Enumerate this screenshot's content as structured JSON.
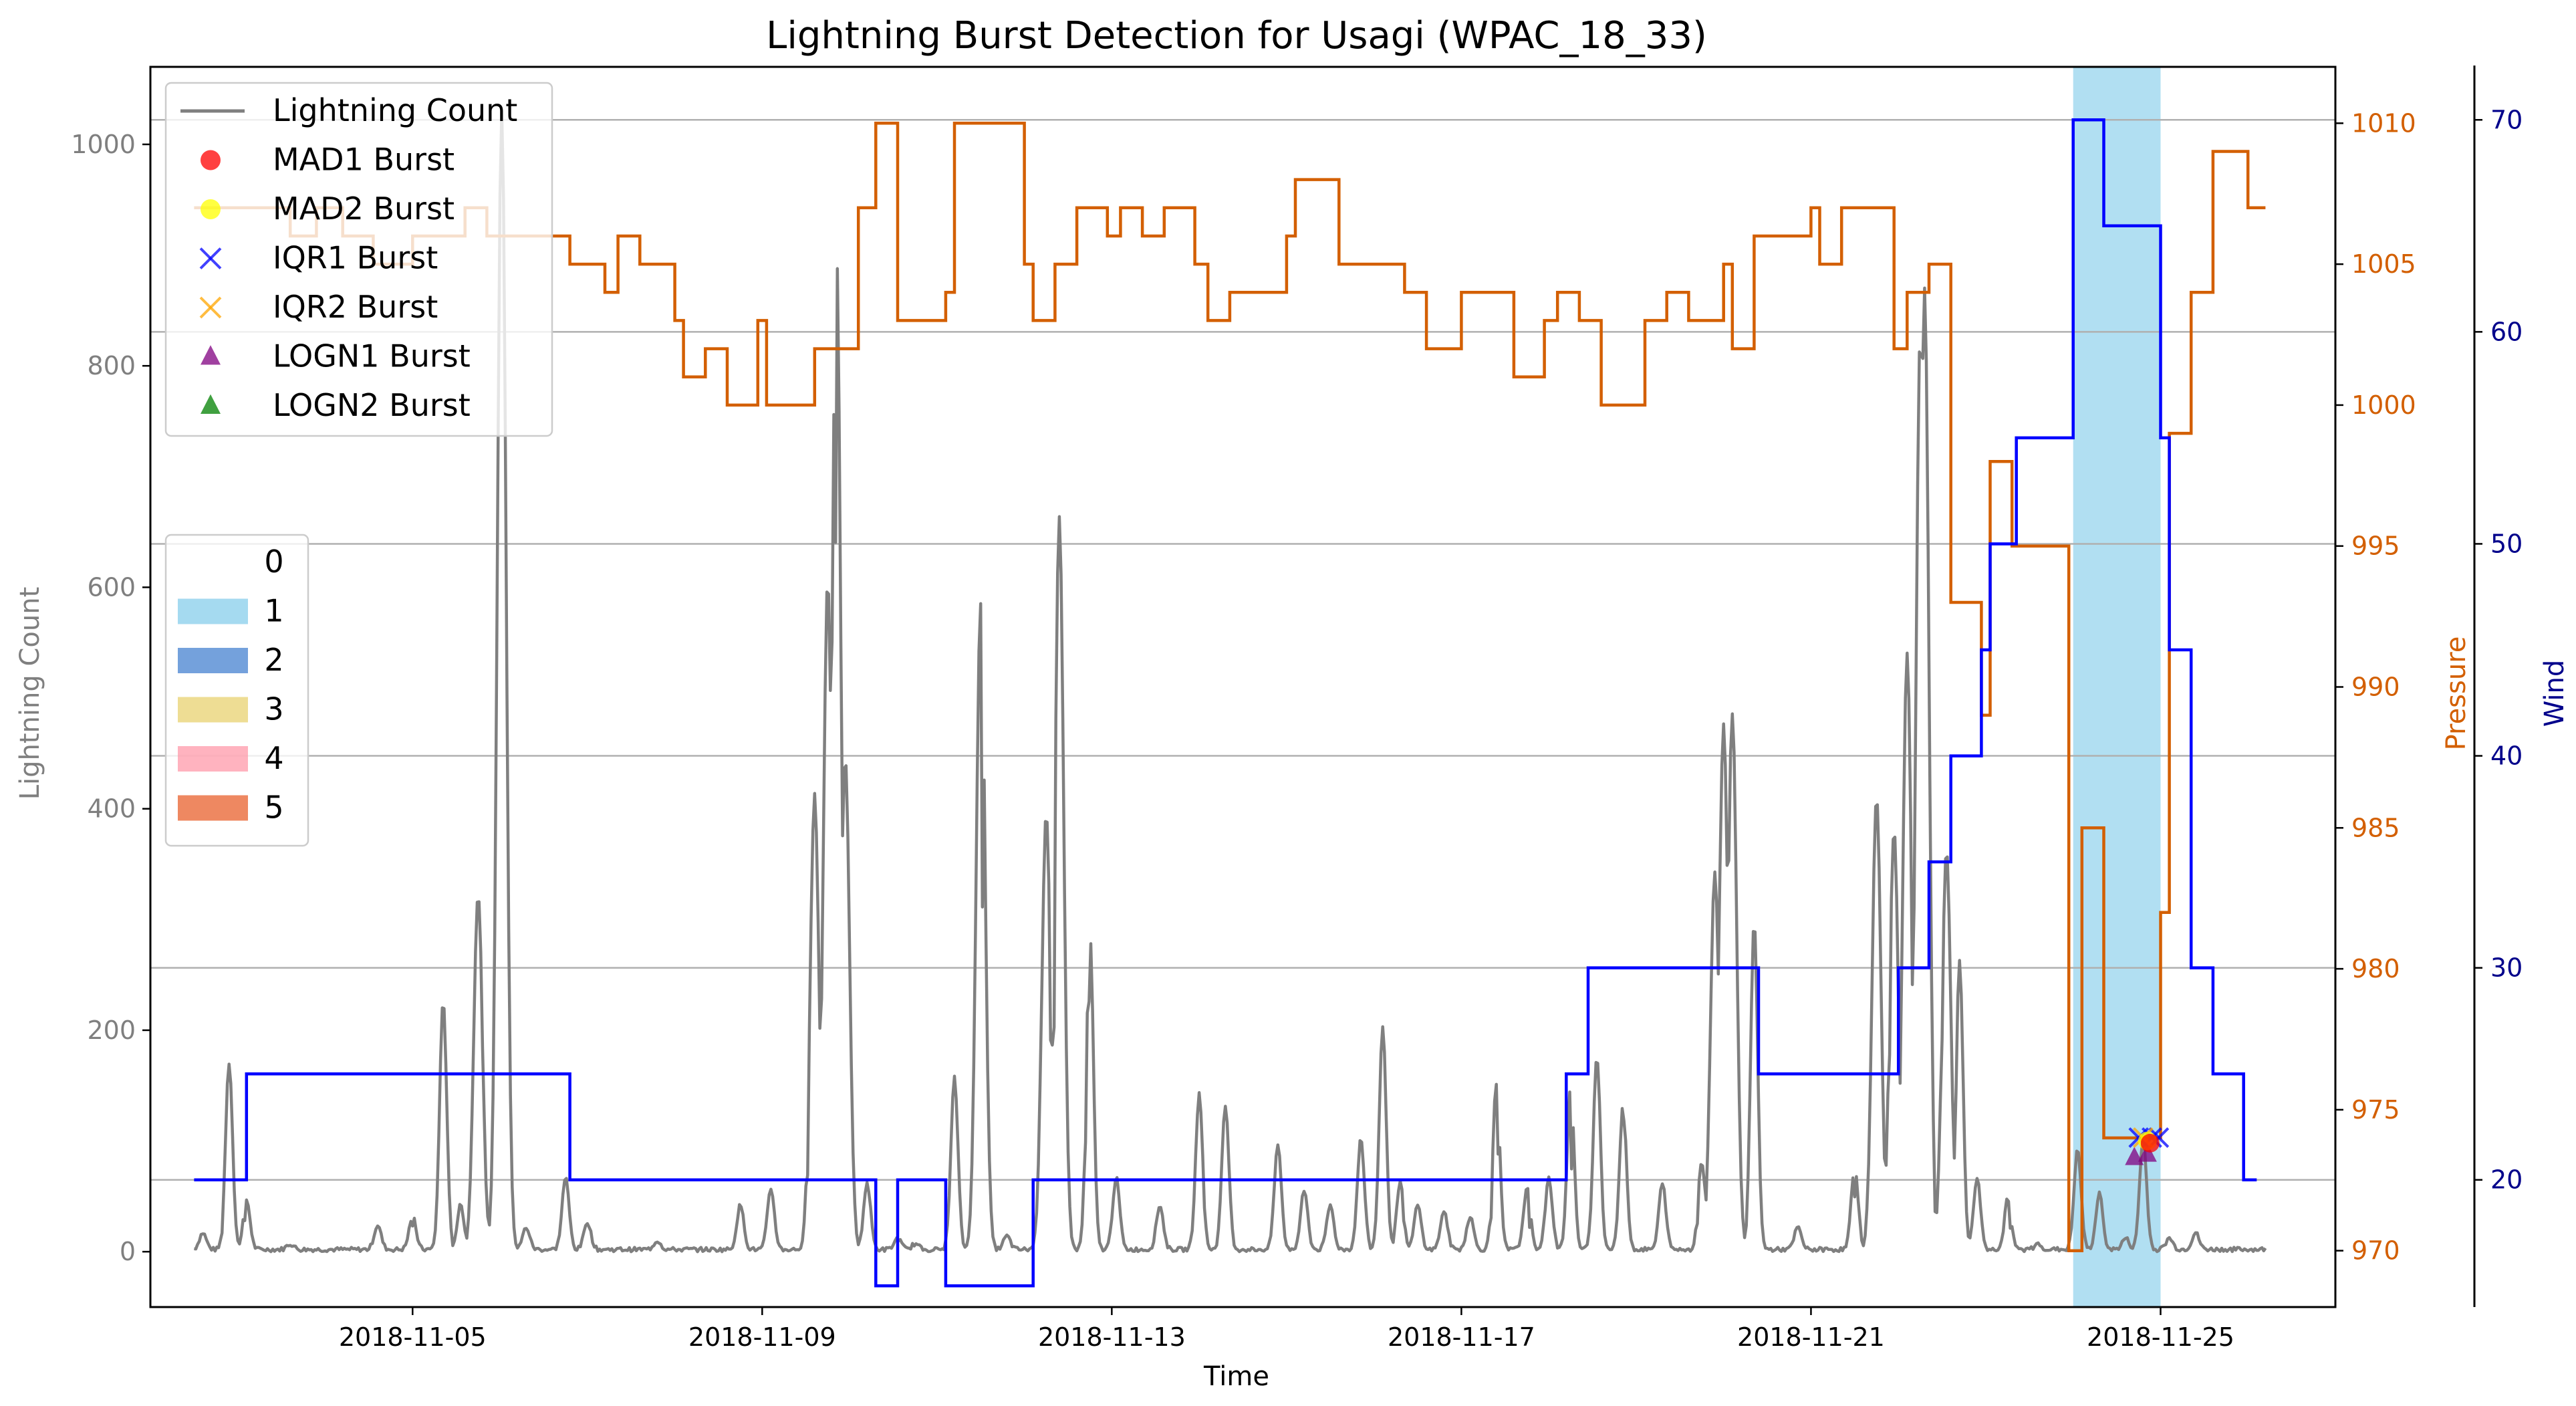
{
  "chart_data": {
    "type": "line",
    "title": "Lightning Burst Detection for Usagi (WPAC_18_33)",
    "xlabel": "Time",
    "ylabel": "Lightning Count",
    "ylabel_pressure": "Pressure",
    "ylabel_wind": "Wind",
    "x_range": [
      "2018-11-02",
      "2018-11-27"
    ],
    "x_ticks": [
      "2018-11-05",
      "2018-11-09",
      "2018-11-13",
      "2018-11-17",
      "2018-11-21",
      "2018-11-25"
    ],
    "ylim": [
      -50,
      1070
    ],
    "y_ticks": [
      0,
      200,
      400,
      600,
      800,
      1000
    ],
    "pressure_ylim": [
      968,
      1012
    ],
    "pressure_ticks": [
      970,
      975,
      980,
      985,
      990,
      995,
      1000,
      1005,
      1010
    ],
    "wind_ylim": [
      14,
      72.5
    ],
    "wind_ticks": [
      20,
      30,
      40,
      50,
      60,
      70
    ],
    "grid": "horizontal at wind ticks",
    "colors": {
      "lightning": "#7f7f7f",
      "pressure": "#d35f00",
      "wind": "#0000ff",
      "wind_axis": "#00008b",
      "highlight": "#87ceeb",
      "mad1": "#ff0000",
      "mad2": "#ffff00",
      "iqr1": "#0000ff",
      "iqr2": "#ffa500",
      "logn1": "#800080",
      "logn2": "#008000"
    },
    "legend_series": {
      "placement": "upper-left",
      "entries": [
        {
          "label": "Lightning Count",
          "marker": "line",
          "color": "#7f7f7f"
        },
        {
          "label": "MAD1 Burst",
          "marker": "circle",
          "color": "#ff0000"
        },
        {
          "label": "MAD2 Burst",
          "marker": "circle",
          "color": "#ffff00"
        },
        {
          "label": "IQR1 Burst",
          "marker": "x",
          "color": "#0000ff"
        },
        {
          "label": "IQR2 Burst",
          "marker": "x",
          "color": "#ffa500"
        },
        {
          "label": "LOGN1 Burst",
          "marker": "triangle",
          "color": "#800080"
        },
        {
          "label": "LOGN2 Burst",
          "marker": "triangle",
          "color": "#008000"
        }
      ]
    },
    "legend_categories": {
      "placement": "middle-left",
      "entries": [
        {
          "label": "0",
          "color": "#ffffff"
        },
        {
          "label": "1",
          "color": "#87ceeb"
        },
        {
          "label": "2",
          "color": "#4682d0"
        },
        {
          "label": "3",
          "color": "#e8d270"
        },
        {
          "label": "4",
          "color": "#ff9aaa"
        },
        {
          "label": "5",
          "color": "#e8602c"
        }
      ]
    },
    "highlight_span": {
      "category": "1",
      "x": [
        "2018-11-24.0",
        "2018-11-25.0"
      ]
    },
    "wind_series": [
      [
        2.5,
        20
      ],
      [
        3.1,
        20
      ],
      [
        3.1,
        25
      ],
      [
        6.8,
        25
      ],
      [
        6.8,
        20
      ],
      [
        10.3,
        20
      ],
      [
        10.3,
        15
      ],
      [
        10.55,
        15
      ],
      [
        10.55,
        20
      ],
      [
        11.1,
        20
      ],
      [
        11.1,
        15
      ],
      [
        12.1,
        15
      ],
      [
        12.1,
        20
      ],
      [
        18.2,
        20
      ],
      [
        18.2,
        25
      ],
      [
        18.45,
        25
      ],
      [
        18.45,
        30
      ],
      [
        20.4,
        30
      ],
      [
        20.4,
        25
      ],
      [
        22.0,
        25
      ],
      [
        22.0,
        30
      ],
      [
        22.35,
        30
      ],
      [
        22.35,
        35
      ],
      [
        22.6,
        35
      ],
      [
        22.6,
        40
      ],
      [
        22.95,
        40
      ],
      [
        22.95,
        45
      ],
      [
        23.05,
        45
      ],
      [
        23.05,
        50
      ],
      [
        23.35,
        50
      ],
      [
        23.35,
        55
      ],
      [
        24.0,
        55
      ],
      [
        24.0,
        70
      ],
      [
        24.35,
        70
      ],
      [
        24.35,
        65
      ],
      [
        25.0,
        65
      ],
      [
        25.0,
        55
      ],
      [
        25.1,
        55
      ],
      [
        25.1,
        45
      ],
      [
        25.35,
        45
      ],
      [
        25.35,
        30
      ],
      [
        25.6,
        30
      ],
      [
        25.6,
        25
      ],
      [
        25.95,
        25
      ],
      [
        25.95,
        20
      ],
      [
        26.1,
        20
      ]
    ],
    "pressure_series": [
      [
        2.5,
        1007
      ],
      [
        3.6,
        1007
      ],
      [
        3.6,
        1006
      ],
      [
        3.9,
        1006
      ],
      [
        3.9,
        1007
      ],
      [
        4.2,
        1007
      ],
      [
        4.2,
        1006
      ],
      [
        4.55,
        1006
      ],
      [
        4.55,
        1005
      ],
      [
        5.0,
        1005
      ],
      [
        5.0,
        1006
      ],
      [
        5.6,
        1006
      ],
      [
        5.6,
        1007
      ],
      [
        5.85,
        1007
      ],
      [
        5.85,
        1006
      ],
      [
        6.8,
        1006
      ],
      [
        6.8,
        1005
      ],
      [
        7.2,
        1005
      ],
      [
        7.2,
        1004
      ],
      [
        7.35,
        1004
      ],
      [
        7.35,
        1006
      ],
      [
        7.6,
        1006
      ],
      [
        7.6,
        1005
      ],
      [
        8.0,
        1005
      ],
      [
        8.0,
        1003
      ],
      [
        8.1,
        1003
      ],
      [
        8.1,
        1001
      ],
      [
        8.35,
        1001
      ],
      [
        8.35,
        1002
      ],
      [
        8.6,
        1002
      ],
      [
        8.6,
        1000
      ],
      [
        8.95,
        1000
      ],
      [
        8.95,
        1003
      ],
      [
        9.05,
        1003
      ],
      [
        9.05,
        1000
      ],
      [
        9.6,
        1000
      ],
      [
        9.6,
        1002
      ],
      [
        10.1,
        1002
      ],
      [
        10.1,
        1007
      ],
      [
        10.3,
        1007
      ],
      [
        10.3,
        1010
      ],
      [
        10.55,
        1010
      ],
      [
        10.55,
        1003
      ],
      [
        11.1,
        1003
      ],
      [
        11.1,
        1004
      ],
      [
        11.2,
        1004
      ],
      [
        11.2,
        1010
      ],
      [
        12.0,
        1010
      ],
      [
        12.0,
        1005
      ],
      [
        12.1,
        1005
      ],
      [
        12.1,
        1003
      ],
      [
        12.35,
        1003
      ],
      [
        12.35,
        1005
      ],
      [
        12.6,
        1005
      ],
      [
        12.6,
        1007
      ],
      [
        12.95,
        1007
      ],
      [
        12.95,
        1006
      ],
      [
        13.1,
        1006
      ],
      [
        13.1,
        1007
      ],
      [
        13.35,
        1007
      ],
      [
        13.35,
        1006
      ],
      [
        13.6,
        1006
      ],
      [
        13.6,
        1007
      ],
      [
        13.95,
        1007
      ],
      [
        13.95,
        1005
      ],
      [
        14.1,
        1005
      ],
      [
        14.1,
        1003
      ],
      [
        14.35,
        1003
      ],
      [
        14.35,
        1004
      ],
      [
        15.0,
        1004
      ],
      [
        15.0,
        1006
      ],
      [
        15.1,
        1006
      ],
      [
        15.1,
        1008
      ],
      [
        15.6,
        1008
      ],
      [
        15.6,
        1005
      ],
      [
        16.35,
        1005
      ],
      [
        16.35,
        1004
      ],
      [
        16.6,
        1004
      ],
      [
        16.6,
        1002
      ],
      [
        17.0,
        1002
      ],
      [
        17.0,
        1004
      ],
      [
        17.6,
        1004
      ],
      [
        17.6,
        1001
      ],
      [
        17.95,
        1001
      ],
      [
        17.95,
        1003
      ],
      [
        18.1,
        1003
      ],
      [
        18.1,
        1004
      ],
      [
        18.35,
        1004
      ],
      [
        18.35,
        1003
      ],
      [
        18.6,
        1003
      ],
      [
        18.6,
        1000
      ],
      [
        19.1,
        1000
      ],
      [
        19.1,
        1003
      ],
      [
        19.35,
        1003
      ],
      [
        19.35,
        1004
      ],
      [
        19.6,
        1004
      ],
      [
        19.6,
        1003
      ],
      [
        20.0,
        1003
      ],
      [
        20.0,
        1005
      ],
      [
        20.1,
        1005
      ],
      [
        20.1,
        1002
      ],
      [
        20.35,
        1002
      ],
      [
        20.35,
        1006
      ],
      [
        21.0,
        1006
      ],
      [
        21.0,
        1007
      ],
      [
        21.1,
        1007
      ],
      [
        21.1,
        1005
      ],
      [
        21.35,
        1005
      ],
      [
        21.35,
        1007
      ],
      [
        21.95,
        1007
      ],
      [
        21.95,
        1002
      ],
      [
        22.1,
        1002
      ],
      [
        22.1,
        1004
      ],
      [
        22.35,
        1004
      ],
      [
        22.35,
        1005
      ],
      [
        22.6,
        1005
      ],
      [
        22.6,
        993
      ],
      [
        22.95,
        993
      ],
      [
        22.95,
        989
      ],
      [
        23.05,
        989
      ],
      [
        23.05,
        998
      ],
      [
        23.3,
        998
      ],
      [
        23.3,
        995
      ],
      [
        23.95,
        995
      ],
      [
        23.95,
        970
      ],
      [
        24.1,
        970
      ],
      [
        24.1,
        985
      ],
      [
        24.35,
        985
      ],
      [
        24.35,
        974
      ],
      [
        25.0,
        974
      ],
      [
        25.0,
        982
      ],
      [
        25.1,
        982
      ],
      [
        25.1,
        999
      ],
      [
        25.35,
        999
      ],
      [
        25.35,
        1004
      ],
      [
        25.6,
        1004
      ],
      [
        25.6,
        1009
      ],
      [
        26.0,
        1009
      ],
      [
        26.0,
        1007
      ],
      [
        26.2,
        1007
      ]
    ],
    "lightning_peaks": [
      [
        2.6,
        15
      ],
      [
        2.9,
        168
      ],
      [
        3.1,
        45
      ],
      [
        3.6,
        5
      ],
      [
        4.6,
        22
      ],
      [
        5.0,
        30
      ],
      [
        5.35,
        225
      ],
      [
        5.55,
        40
      ],
      [
        5.75,
        322
      ],
      [
        6.02,
        1030
      ],
      [
        6.3,
        20
      ],
      [
        6.75,
        65
      ],
      [
        7.0,
        25
      ],
      [
        7.8,
        8
      ],
      [
        8.75,
        40
      ],
      [
        9.1,
        55
      ],
      [
        9.6,
        410
      ],
      [
        9.75,
        605
      ],
      [
        9.85,
        905
      ],
      [
        9.95,
        445
      ],
      [
        10.2,
        60
      ],
      [
        10.55,
        10
      ],
      [
        10.75,
        5
      ],
      [
        11.2,
        155
      ],
      [
        11.5,
        585
      ],
      [
        11.8,
        12
      ],
      [
        12.25,
        395
      ],
      [
        12.4,
        660
      ],
      [
        12.75,
        285
      ],
      [
        13.05,
        65
      ],
      [
        13.55,
        40
      ],
      [
        14.0,
        140
      ],
      [
        14.3,
        130
      ],
      [
        14.9,
        95
      ],
      [
        15.2,
        55
      ],
      [
        15.5,
        40
      ],
      [
        15.85,
        100
      ],
      [
        16.1,
        200
      ],
      [
        16.3,
        60
      ],
      [
        16.5,
        40
      ],
      [
        16.8,
        35
      ],
      [
        17.1,
        30
      ],
      [
        17.4,
        150
      ],
      [
        17.75,
        55
      ],
      [
        18.0,
        65
      ],
      [
        18.25,
        145
      ],
      [
        18.55,
        175
      ],
      [
        18.85,
        130
      ],
      [
        19.3,
        60
      ],
      [
        19.75,
        80
      ],
      [
        19.9,
        340
      ],
      [
        20.0,
        475
      ],
      [
        20.1,
        485
      ],
      [
        20.35,
        295
      ],
      [
        20.85,
        20
      ],
      [
        21.5,
        75
      ],
      [
        21.75,
        410
      ],
      [
        21.95,
        380
      ],
      [
        22.1,
        540
      ],
      [
        22.25,
        825
      ],
      [
        22.3,
        870
      ],
      [
        22.55,
        360
      ],
      [
        22.7,
        260
      ],
      [
        22.9,
        65
      ],
      [
        23.25,
        45
      ],
      [
        23.6,
        5
      ],
      [
        24.05,
        90
      ],
      [
        24.3,
        50
      ],
      [
        24.6,
        10
      ],
      [
        24.8,
        100
      ],
      [
        25.1,
        10
      ],
      [
        25.4,
        15
      ]
    ],
    "burst_markers": [
      {
        "type": "LOGN1",
        "x": 24.7,
        "y": 85
      },
      {
        "type": "LOGN1",
        "x": 24.85,
        "y": 88
      },
      {
        "type": "IQR1",
        "x": 24.75,
        "y": 103
      },
      {
        "type": "IQR1",
        "x": 24.9,
        "y": 103
      },
      {
        "type": "IQR1",
        "x": 24.98,
        "y": 103
      },
      {
        "type": "IQR2",
        "x": 24.8,
        "y": 103
      },
      {
        "type": "MAD2",
        "x": 24.85,
        "y": 100
      },
      {
        "type": "MAD1",
        "x": 24.88,
        "y": 98
      }
    ]
  }
}
